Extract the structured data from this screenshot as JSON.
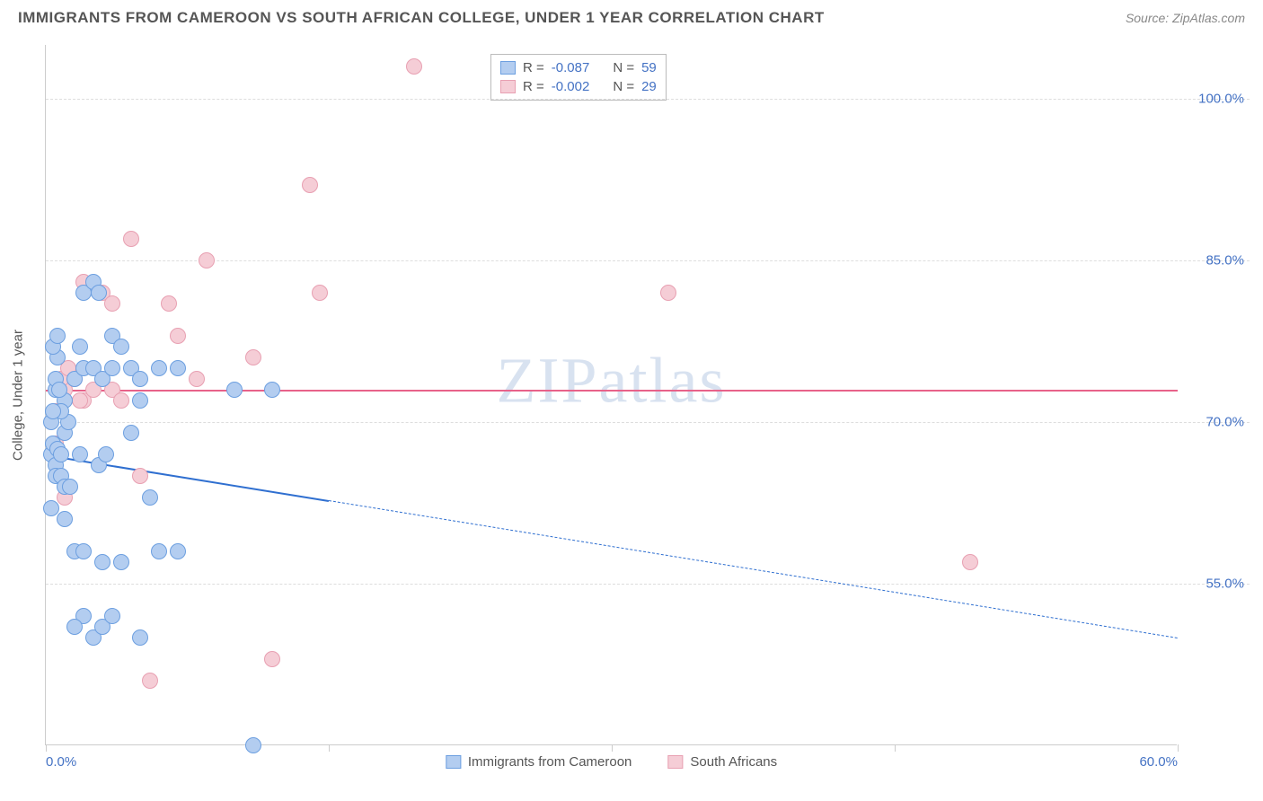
{
  "header": {
    "title": "IMMIGRANTS FROM CAMEROON VS SOUTH AFRICAN COLLEGE, UNDER 1 YEAR CORRELATION CHART",
    "source": "Source: ZipAtlas.com"
  },
  "chart": {
    "type": "scatter",
    "watermark": "ZIPatlas",
    "axis_title_y": "College, Under 1 year",
    "background_color": "#ffffff",
    "grid_color": "#dddddd",
    "axis_color": "#cccccc",
    "label_color": "#4472c4",
    "xlim": [
      0,
      60
    ],
    "ylim": [
      40,
      105
    ],
    "x_ticks": [
      0,
      15,
      30,
      45,
      60
    ],
    "x_tick_labels": [
      "0.0%",
      "",
      "",
      "",
      "60.0%"
    ],
    "y_ticks": [
      55,
      70,
      85,
      100
    ],
    "y_tick_labels": [
      "55.0%",
      "70.0%",
      "85.0%",
      "100.0%"
    ],
    "series": {
      "blue": {
        "label": "Immigrants from Cameroon",
        "fill_color": "#b3cdf0",
        "stroke_color": "#6c9fe0",
        "r_value": "-0.087",
        "n_value": "59",
        "regression": {
          "color": "#2f6fd0",
          "width": 2.5,
          "solid_from_x": 0,
          "solid_to_x": 15,
          "dashed_to_x": 60,
          "y_start": 67,
          "y_end": 50
        },
        "points": [
          [
            0.3,
            67
          ],
          [
            0.4,
            68
          ],
          [
            0.5,
            66
          ],
          [
            0.6,
            67.5
          ],
          [
            0.8,
            67
          ],
          [
            1.0,
            69
          ],
          [
            1.2,
            70
          ],
          [
            1.0,
            72
          ],
          [
            0.8,
            71
          ],
          [
            0.5,
            73
          ],
          [
            1.5,
            74
          ],
          [
            2.0,
            75
          ],
          [
            2.5,
            75
          ],
          [
            0.6,
            76
          ],
          [
            1.8,
            77
          ],
          [
            3.0,
            74
          ],
          [
            3.5,
            75
          ],
          [
            4.5,
            75
          ],
          [
            5.0,
            74
          ],
          [
            2.0,
            82
          ],
          [
            2.5,
            83
          ],
          [
            2.8,
            82
          ],
          [
            3.5,
            78
          ],
          [
            4.0,
            77
          ],
          [
            5.0,
            72
          ],
          [
            6.0,
            75
          ],
          [
            7.0,
            75
          ],
          [
            10.0,
            73
          ],
          [
            12.0,
            73
          ],
          [
            1.0,
            61
          ],
          [
            1.5,
            58
          ],
          [
            2.0,
            58
          ],
          [
            3.0,
            57
          ],
          [
            4.0,
            57
          ],
          [
            7.0,
            58
          ],
          [
            2.5,
            50
          ],
          [
            3.0,
            51
          ],
          [
            3.5,
            52
          ],
          [
            2.0,
            52
          ],
          [
            1.5,
            51
          ],
          [
            5.0,
            50
          ],
          [
            5.5,
            63
          ],
          [
            4.5,
            69
          ],
          [
            6.0,
            58
          ],
          [
            0.5,
            65
          ],
          [
            0.8,
            65
          ],
          [
            1.0,
            64
          ],
          [
            1.3,
            64
          ],
          [
            0.3,
            62
          ],
          [
            0.5,
            74
          ],
          [
            0.3,
            70
          ],
          [
            0.4,
            71
          ],
          [
            0.7,
            73
          ],
          [
            2.8,
            66
          ],
          [
            1.8,
            67
          ],
          [
            3.2,
            67
          ],
          [
            11.0,
            40
          ],
          [
            0.4,
            77
          ],
          [
            0.6,
            78
          ]
        ]
      },
      "pink": {
        "label": "South Africans",
        "fill_color": "#f5cdd6",
        "stroke_color": "#e8a0b2",
        "r_value": "-0.002",
        "n_value": "29",
        "regression": {
          "color": "#e8628a",
          "width": 2,
          "solid_from_x": 0,
          "solid_to_x": 60,
          "y_start": 73,
          "y_end": 73
        },
        "points": [
          [
            33.0,
            82
          ],
          [
            49.0,
            57
          ],
          [
            19.5,
            103
          ],
          [
            14.0,
            92
          ],
          [
            4.5,
            87
          ],
          [
            3.5,
            73
          ],
          [
            4.0,
            72
          ],
          [
            5.0,
            65
          ],
          [
            5.5,
            46
          ],
          [
            12.0,
            48
          ],
          [
            7.0,
            78
          ],
          [
            8.5,
            85
          ],
          [
            11.0,
            76
          ],
          [
            14.5,
            82
          ],
          [
            8.0,
            74
          ],
          [
            1.0,
            73
          ],
          [
            1.5,
            74
          ],
          [
            2.0,
            72
          ],
          [
            0.5,
            71
          ],
          [
            0.8,
            74
          ],
          [
            1.2,
            75
          ],
          [
            1.8,
            72
          ],
          [
            2.5,
            73
          ],
          [
            2.0,
            83
          ],
          [
            3.0,
            82
          ],
          [
            3.5,
            81
          ],
          [
            1.0,
            63
          ],
          [
            0.5,
            68
          ],
          [
            6.5,
            81
          ]
        ]
      }
    },
    "legend_top": {
      "r_label": "R =",
      "n_label": "N ="
    }
  }
}
